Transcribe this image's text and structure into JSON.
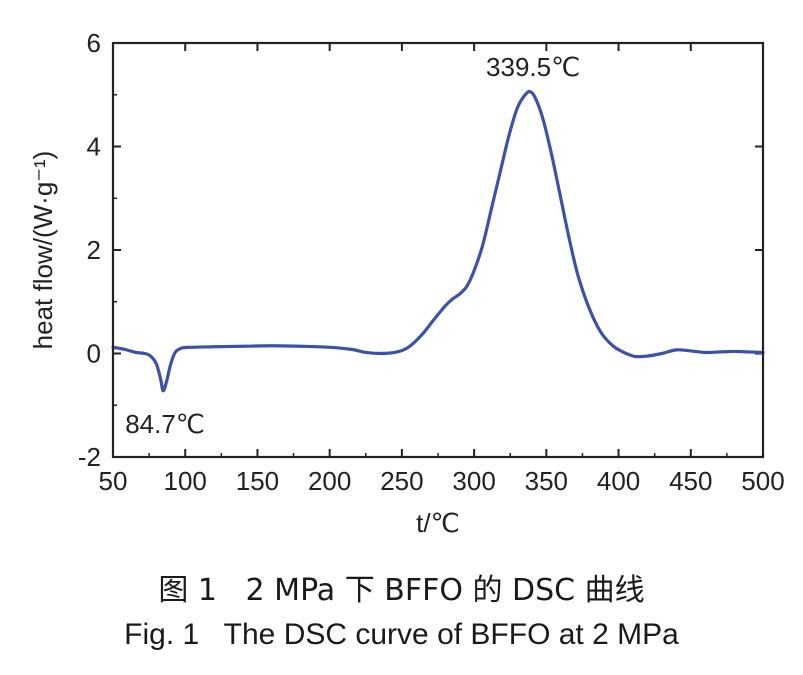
{
  "chart_data": {
    "type": "line",
    "xlabel": "t/℃",
    "ylabel": "heat flow/(W·g⁻¹)",
    "xlim": [
      50,
      500
    ],
    "ylim": [
      -2,
      6
    ],
    "x_ticks": [
      50,
      100,
      150,
      200,
      250,
      300,
      350,
      400,
      450,
      500
    ],
    "y_ticks": [
      -2,
      0,
      2,
      4,
      6
    ],
    "grid": false,
    "color": "#3c52a8",
    "series": [
      {
        "x": [
          50,
          58,
          66,
          72,
          76,
          80,
          83,
          84.7,
          87,
          90,
          93,
          97,
          103,
          120,
          140,
          160,
          180,
          200,
          215,
          225,
          235,
          245,
          252,
          258,
          265,
          272,
          280,
          285,
          290,
          295,
          300,
          306,
          312,
          318,
          324,
          330,
          336,
          339.5,
          343,
          348,
          354,
          360,
          366,
          372,
          380,
          388,
          396,
          403,
          408,
          412,
          420,
          430,
          440,
          450,
          460,
          470,
          480,
          490,
          500
        ],
        "y": [
          0.12,
          0.08,
          0.02,
          0.0,
          -0.05,
          -0.2,
          -0.5,
          -0.72,
          -0.55,
          -0.2,
          0.02,
          0.1,
          0.12,
          0.13,
          0.14,
          0.15,
          0.14,
          0.12,
          0.08,
          0.02,
          0.0,
          0.02,
          0.08,
          0.2,
          0.4,
          0.65,
          0.92,
          1.05,
          1.15,
          1.3,
          1.6,
          2.1,
          2.8,
          3.5,
          4.2,
          4.75,
          5.02,
          5.05,
          4.9,
          4.5,
          3.8,
          3.0,
          2.2,
          1.5,
          0.85,
          0.4,
          0.15,
          0.03,
          -0.03,
          -0.06,
          -0.05,
          0.0,
          0.07,
          0.05,
          0.02,
          0.03,
          0.04,
          0.03,
          0.02
        ]
      }
    ],
    "annotations": [
      {
        "text": "339.5℃",
        "x": 339.5,
        "y": 5.05,
        "position": "above"
      },
      {
        "text": "84.7℃",
        "x": 84.7,
        "y": -0.72,
        "position": "below"
      }
    ]
  },
  "caption": {
    "cn": "图 1   2 MPa 下 BFFO 的 DSC 曲线",
    "en": "Fig. 1   The DSC curve of BFFO at 2 MPa"
  }
}
